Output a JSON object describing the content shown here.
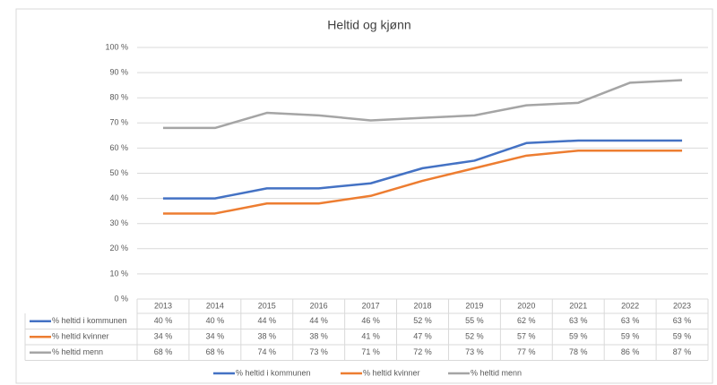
{
  "chart_data": {
    "type": "line",
    "title": "Heltid og kjønn",
    "categories": [
      "2013",
      "2014",
      "2015",
      "2016",
      "2017",
      "2018",
      "2019",
      "2020",
      "2021",
      "2022",
      "2023"
    ],
    "series": [
      {
        "name": "% heltid i kommunen",
        "color": "#4472c4",
        "values": [
          40,
          40,
          44,
          44,
          46,
          52,
          55,
          62,
          63,
          63,
          63
        ],
        "value_labels": [
          "40 %",
          "40 %",
          "44 %",
          "44 %",
          "46 %",
          "52 %",
          "55 %",
          "62 %",
          "63 %",
          "63 %",
          "63 %"
        ]
      },
      {
        "name": "% heltid kvinner",
        "color": "#ed7d31",
        "values": [
          34,
          34,
          38,
          38,
          41,
          47,
          52,
          57,
          59,
          59,
          59
        ],
        "value_labels": [
          "34 %",
          "34 %",
          "38 %",
          "38 %",
          "41 %",
          "47 %",
          "52 %",
          "57 %",
          "59 %",
          "59 %",
          "59 %"
        ]
      },
      {
        "name": "% heltid menn",
        "color": "#a5a5a5",
        "values": [
          68,
          68,
          74,
          73,
          71,
          72,
          73,
          77,
          78,
          86,
          87
        ],
        "value_labels": [
          "68 %",
          "68 %",
          "74 %",
          "73 %",
          "71 %",
          "72 %",
          "73 %",
          "77 %",
          "78 %",
          "86 %",
          "87 %"
        ]
      }
    ],
    "ylim": [
      0,
      100
    ],
    "yticks": [
      {
        "value": 0,
        "label": "0 %"
      },
      {
        "value": 10,
        "label": "10 %"
      },
      {
        "value": 20,
        "label": "20 %"
      },
      {
        "value": 30,
        "label": "30 %"
      },
      {
        "value": 40,
        "label": "40 %"
      },
      {
        "value": 50,
        "label": "50 %"
      },
      {
        "value": 60,
        "label": "60 %"
      },
      {
        "value": 70,
        "label": "70 %"
      },
      {
        "value": 80,
        "label": "80 %"
      },
      {
        "value": 90,
        "label": "90 %"
      },
      {
        "value": 100,
        "label": "100 %"
      }
    ],
    "grid": true,
    "legend": "bottom"
  }
}
